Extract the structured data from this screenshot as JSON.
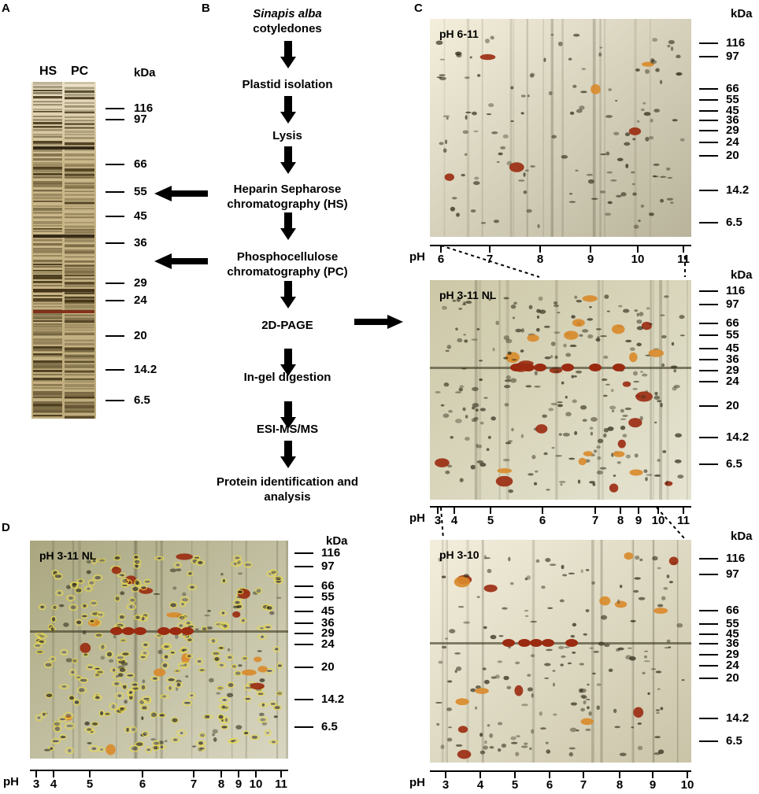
{
  "panel_a": {
    "letter": "A",
    "lanes": [
      "HS",
      "PC"
    ],
    "kda": "kDa",
    "markers": [
      "116",
      "97",
      "66",
      "55",
      "45",
      "36",
      "29",
      "24",
      "20",
      "14.2",
      "6.5"
    ]
  },
  "panel_b": {
    "letter": "B",
    "title_italic": "Sinapis alba",
    "title_rest": "cotyledones",
    "steps": [
      "Plastid isolation",
      "Lysis",
      "Heparin Sepharose chromatography (HS)",
      "Phosphocellulose chromatography (PC)",
      "2D-PAGE",
      "In-gel digestion",
      "ESI-MS/MS",
      "Protein identification and analysis"
    ]
  },
  "panel_c": {
    "letter": "C",
    "gels": [
      {
        "label": "pH 6-11",
        "kda": "kDa",
        "markers": [
          "116",
          "97",
          "66",
          "55",
          "45",
          "36",
          "29",
          "24",
          "20",
          "14.2",
          "6.5"
        ],
        "ph_label": "pH",
        "ph_ticks": [
          "6",
          "7",
          "8",
          "9",
          "10",
          "11"
        ]
      },
      {
        "label": "pH 3-11 NL",
        "kda": "kDa",
        "markers": [
          "116",
          "97",
          "66",
          "55",
          "45",
          "36",
          "29",
          "24",
          "20",
          "14.2",
          "6.5"
        ],
        "ph_label": "pH",
        "ph_ticks": [
          "3",
          "4",
          "5",
          "6",
          "7",
          "8",
          "9",
          "10",
          "11"
        ]
      },
      {
        "label": "pH 3-10",
        "kda": "kDa",
        "markers": [
          "116",
          "97",
          "66",
          "55",
          "45",
          "36",
          "29",
          "24",
          "20",
          "14.2",
          "6.5"
        ],
        "ph_label": "pH",
        "ph_ticks": [
          "3",
          "4",
          "5",
          "6",
          "7",
          "8",
          "9",
          "10"
        ]
      }
    ]
  },
  "panel_d": {
    "letter": "D",
    "label": "pH 3-11 NL",
    "kda": "kDa",
    "markers": [
      "116",
      "97",
      "66",
      "55",
      "45",
      "36",
      "29",
      "24",
      "20",
      "14.2",
      "6.5"
    ],
    "ph_label": "pH",
    "ph_ticks": [
      "3",
      "4",
      "5",
      "6",
      "7",
      "8",
      "9",
      "10",
      "11"
    ]
  },
  "colors": {
    "gel_background": "#d9d2b8",
    "silver_dark": "#3b3520",
    "spot_red": "#9a2a10",
    "spot_orange": "#d98a2a",
    "outline_yellow": "#e8d84a"
  }
}
